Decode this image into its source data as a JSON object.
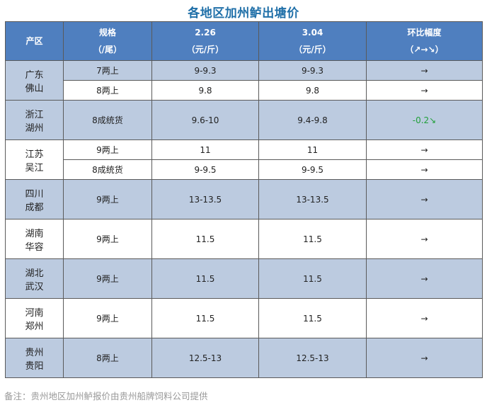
{
  "title": "各地区加州鲈出塘价",
  "header": {
    "region": "产区",
    "spec": [
      "规格",
      "（/尾）"
    ],
    "date1": [
      "2.26",
      "（元/斤）"
    ],
    "date2": [
      "3.04",
      "（元/斤）"
    ],
    "change": [
      "环比幅度",
      "（↗→↘）"
    ]
  },
  "rows": [
    {
      "region": [
        "广东",
        "佛山"
      ],
      "entries": [
        {
          "spec": "7两上",
          "p1": "9-9.3",
          "p2": "9-9.3",
          "change": "→"
        },
        {
          "spec": "8两上",
          "p1": "9.8",
          "p2": "9.8",
          "change": "→"
        }
      ]
    },
    {
      "region": [
        "浙江",
        "湖州"
      ],
      "entries": [
        {
          "spec": "8成统货",
          "p1": "9.6-10",
          "p2": "9.4-9.8",
          "change": "-0.2↘"
        }
      ]
    },
    {
      "region": [
        "江苏",
        "吴江"
      ],
      "entries": [
        {
          "spec": "9两上",
          "p1": "11",
          "p2": "11",
          "change": "→"
        },
        {
          "spec": "8成统货",
          "p1": "9-9.5",
          "p2": "9-9.5",
          "change": "→"
        }
      ]
    },
    {
      "region": [
        "四川",
        "成都"
      ],
      "entries": [
        {
          "spec": "9两上",
          "p1": "13-13.5",
          "p2": "13-13.5",
          "change": "→"
        }
      ]
    },
    {
      "region": [
        "湖南",
        "华容"
      ],
      "entries": [
        {
          "spec": "9两上",
          "p1": "11.5",
          "p2": "11.5",
          "change": "→"
        }
      ]
    },
    {
      "region": [
        "湖北",
        "武汉"
      ],
      "entries": [
        {
          "spec": "9两上",
          "p1": "11.5",
          "p2": "11.5",
          "change": "→"
        }
      ]
    },
    {
      "region": [
        "河南",
        "郑州"
      ],
      "entries": [
        {
          "spec": "9两上",
          "p1": "11.5",
          "p2": "11.5",
          "change": "→"
        }
      ]
    },
    {
      "region": [
        "贵州",
        "贵阳"
      ],
      "entries": [
        {
          "spec": "8两上",
          "p1": "12.5-13",
          "p2": "12.5-13",
          "change": "→"
        }
      ]
    }
  ],
  "note": "备注：贵州地区加州鲈报价由贵州船牌饲料公司提供",
  "colors": {
    "header_bg": "#4f7fbf",
    "row_blue": "#bccbe0",
    "title": "#1f6fa8",
    "down": "#21a03a"
  }
}
